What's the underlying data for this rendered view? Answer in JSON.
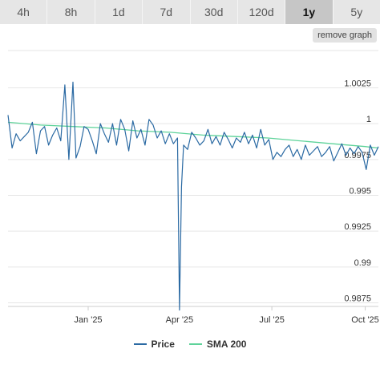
{
  "tabs": [
    {
      "label": "4h",
      "active": false
    },
    {
      "label": "8h",
      "active": false
    },
    {
      "label": "1d",
      "active": false
    },
    {
      "label": "7d",
      "active": false
    },
    {
      "label": "30d",
      "active": false
    },
    {
      "label": "120d",
      "active": false
    },
    {
      "label": "1y",
      "active": true
    },
    {
      "label": "5y",
      "active": false
    }
  ],
  "remove_graph_label": "remove graph",
  "legend": {
    "price": "Price",
    "sma": "SMA 200"
  },
  "colors": {
    "price": "#2b6aa3",
    "sma": "#5ed39a",
    "grid": "#e6e6e6"
  },
  "chart_data": {
    "type": "line",
    "x_range": [
      "2024-10-14",
      "2025-10-14"
    ],
    "ylim": [
      0.98725,
      1.0051
    ],
    "yticks": [
      0.9875,
      0.99,
      0.9925,
      0.995,
      0.9975,
      1,
      1.0025
    ],
    "ytick_labels": [
      "0.9875",
      "0.99",
      "0.9925",
      "0.995",
      "0.9975",
      "1",
      "1.0025"
    ],
    "xticks": [
      "2025-01-01",
      "2025-04-01",
      "2025-07-01",
      "2025-10-01"
    ],
    "xtick_labels": [
      "Jan '25",
      "Apr '25",
      "Jul '25",
      "Oct '25"
    ],
    "grid": true,
    "legend_position": "bottom",
    "series": [
      {
        "name": "Price",
        "x": [
          "2024-10-14",
          "2024-10-18",
          "2024-10-22",
          "2024-10-26",
          "2024-10-30",
          "2024-11-03",
          "2024-11-07",
          "2024-11-11",
          "2024-11-15",
          "2024-11-19",
          "2024-11-23",
          "2024-11-27",
          "2024-12-01",
          "2024-12-05",
          "2024-12-09",
          "2024-12-13",
          "2024-12-17",
          "2024-12-20",
          "2024-12-24",
          "2024-12-28",
          "2025-01-01",
          "2025-01-05",
          "2025-01-09",
          "2025-01-13",
          "2025-01-17",
          "2025-01-21",
          "2025-01-25",
          "2025-01-29",
          "2025-02-02",
          "2025-02-06",
          "2025-02-10",
          "2025-02-14",
          "2025-02-18",
          "2025-02-22",
          "2025-02-26",
          "2025-03-02",
          "2025-03-06",
          "2025-03-10",
          "2025-03-14",
          "2025-03-18",
          "2025-03-22",
          "2025-03-26",
          "2025-03-30",
          "2025-04-01",
          "2025-04-03",
          "2025-04-05",
          "2025-04-09",
          "2025-04-13",
          "2025-04-17",
          "2025-04-21",
          "2025-04-25",
          "2025-04-29",
          "2025-05-03",
          "2025-05-07",
          "2025-05-11",
          "2025-05-15",
          "2025-05-19",
          "2025-05-23",
          "2025-05-27",
          "2025-05-31",
          "2025-06-04",
          "2025-06-08",
          "2025-06-12",
          "2025-06-16",
          "2025-06-20",
          "2025-06-24",
          "2025-06-28",
          "2025-07-02",
          "2025-07-06",
          "2025-07-10",
          "2025-07-14",
          "2025-07-18",
          "2025-07-22",
          "2025-07-26",
          "2025-07-30",
          "2025-08-03",
          "2025-08-07",
          "2025-08-11",
          "2025-08-15",
          "2025-08-19",
          "2025-08-23",
          "2025-08-27",
          "2025-08-31",
          "2025-09-04",
          "2025-09-08",
          "2025-09-12",
          "2025-09-16",
          "2025-09-20",
          "2025-09-24",
          "2025-09-28",
          "2025-10-02",
          "2025-10-06",
          "2025-10-10",
          "2025-10-14"
        ],
        "y": [
          1.0006,
          0.9983,
          0.9993,
          0.9988,
          0.9991,
          0.9994,
          1.0001,
          0.9979,
          0.9995,
          0.9998,
          0.9985,
          0.9992,
          0.9997,
          0.9988,
          1.0027,
          0.9975,
          1.0029,
          0.9976,
          0.9984,
          0.9998,
          0.9996,
          0.9988,
          0.9979,
          1.0,
          0.9993,
          0.9987,
          1.0,
          0.9985,
          1.0003,
          0.9996,
          0.9981,
          1.0002,
          0.999,
          0.9996,
          0.9985,
          1.0003,
          0.9999,
          0.999,
          0.9995,
          0.9986,
          0.9993,
          0.9986,
          0.999,
          0.987,
          0.9956,
          0.9985,
          0.9982,
          0.9994,
          0.999,
          0.9985,
          0.9988,
          0.9996,
          0.9986,
          0.9991,
          0.9985,
          0.9994,
          0.9989,
          0.9983,
          0.999,
          0.9987,
          0.9994,
          0.9986,
          0.9992,
          0.9983,
          0.9996,
          0.9985,
          0.9989,
          0.9975,
          0.998,
          0.9977,
          0.9982,
          0.9985,
          0.9977,
          0.9982,
          0.9975,
          0.9985,
          0.9978,
          0.9981,
          0.9984,
          0.9977,
          0.998,
          0.9984,
          0.9974,
          0.998,
          0.9986,
          0.9978,
          0.9983,
          0.9979,
          0.9984,
          0.998,
          0.9968,
          0.9985,
          0.9978,
          0.9984
        ]
      },
      {
        "name": "SMA 200",
        "x": [
          "2024-10-14",
          "2024-11-15",
          "2024-12-17",
          "2025-01-18",
          "2025-02-19",
          "2025-03-23",
          "2025-04-24",
          "2025-05-26",
          "2025-06-27",
          "2025-07-29",
          "2025-08-30",
          "2025-10-01",
          "2025-10-14"
        ],
        "y": [
          1.0001,
          0.9999,
          0.9998,
          0.9997,
          0.9995,
          0.9994,
          0.9992,
          0.9991,
          0.999,
          0.9988,
          0.9986,
          0.9984,
          0.9983
        ]
      }
    ]
  }
}
